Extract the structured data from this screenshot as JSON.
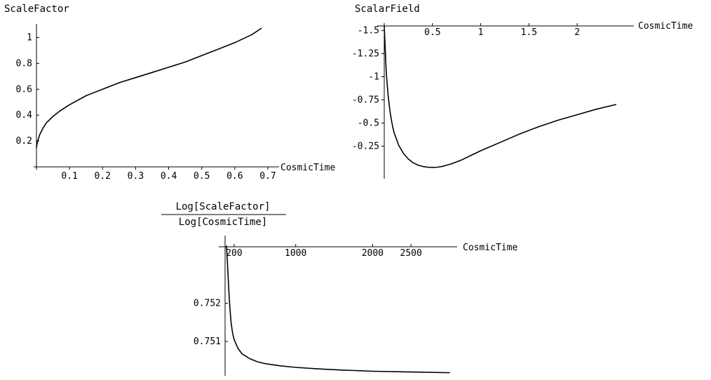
{
  "chart_data": [
    {
      "type": "line",
      "title": "ScaleFactor",
      "xlabel": "CosmicTime",
      "ylabel": "",
      "xlim": [
        0,
        0.7
      ],
      "ylim": [
        0,
        1.1
      ],
      "x_ticks": [
        0.1,
        0.2,
        0.3,
        0.4,
        0.5,
        0.6,
        0.7
      ],
      "x_tick_labels": [
        "0.1",
        "0.2",
        "0.3",
        "0.4",
        "0.5",
        "0.6",
        "0.7"
      ],
      "y_ticks": [
        0.2,
        0.4,
        0.6,
        0.8,
        1.0
      ],
      "y_tick_labels": [
        "0.2",
        "0.4",
        "0.6",
        "0.8",
        "1"
      ],
      "grid": false,
      "series": [
        {
          "x": [
            0.0,
            0.002,
            0.005,
            0.01,
            0.02,
            0.03,
            0.05,
            0.07,
            0.1,
            0.15,
            0.2,
            0.25,
            0.3,
            0.35,
            0.4,
            0.45,
            0.5,
            0.55,
            0.6,
            0.65,
            0.68
          ],
          "values": [
            0.15,
            0.18,
            0.21,
            0.25,
            0.3,
            0.34,
            0.39,
            0.43,
            0.48,
            0.55,
            0.6,
            0.65,
            0.69,
            0.73,
            0.77,
            0.81,
            0.86,
            0.91,
            0.96,
            1.02,
            1.07
          ]
        }
      ]
    },
    {
      "type": "line",
      "title": "ScalarField",
      "xlabel": "CosmicTime",
      "ylabel": "",
      "xlim": [
        0,
        2.5
      ],
      "ylim": [
        -1.55,
        0.05
      ],
      "x_ticks": [
        0.5,
        1,
        1.5,
        2
      ],
      "x_tick_labels": [
        "0.5",
        "1",
        "1.5",
        "2"
      ],
      "y_ticks": [
        -0.25,
        -0.5,
        -0.75,
        -1,
        -1.25,
        -1.5
      ],
      "y_tick_labels": [
        "-0.25",
        "-0.5",
        "-0.75",
        "-1",
        "-1.25",
        "-1.5"
      ],
      "grid": false,
      "series": [
        {
          "x": [
            0.0,
            0.01,
            0.02,
            0.04,
            0.06,
            0.08,
            0.1,
            0.15,
            0.2,
            0.25,
            0.3,
            0.35,
            0.4,
            0.45,
            0.5,
            0.55,
            0.6,
            0.7,
            0.8,
            0.9,
            1.0,
            1.2,
            1.4,
            1.6,
            1.8,
            2.0,
            2.2,
            2.4
          ],
          "values": [
            -1.55,
            -1.3,
            -1.05,
            -0.8,
            -0.62,
            -0.5,
            -0.4,
            -0.26,
            -0.17,
            -0.11,
            -0.07,
            -0.045,
            -0.03,
            -0.022,
            -0.02,
            -0.022,
            -0.03,
            -0.06,
            -0.1,
            -0.15,
            -0.2,
            -0.29,
            -0.38,
            -0.46,
            -0.53,
            -0.59,
            -0.65,
            -0.7
          ]
        }
      ]
    },
    {
      "type": "line",
      "title_numerator": "Log[ScaleFactor]",
      "title_denominator": "Log[CosmicTime]",
      "xlabel": "CosmicTime",
      "ylabel": "",
      "xlim": [
        0,
        3100
      ],
      "ylim": [
        0.7501,
        0.7537
      ],
      "x_ticks": [
        200,
        1000,
        2000,
        2500
      ],
      "x_tick_labels": [
        "200",
        "1000",
        "2000",
        "2500"
      ],
      "y_ticks": [
        0.751,
        0.752
      ],
      "y_tick_labels": [
        "0.751",
        "0.752"
      ],
      "grid": false,
      "series": [
        {
          "x": [
            100,
            110,
            120,
            130,
            140,
            160,
            180,
            200,
            250,
            300,
            400,
            500,
            600,
            800,
            1000,
            1300,
            1600,
            2000,
            2500,
            3000
          ],
          "values": [
            0.7535,
            0.75315,
            0.75275,
            0.75235,
            0.752,
            0.7515,
            0.75122,
            0.75105,
            0.75082,
            0.75068,
            0.75055,
            0.75047,
            0.75042,
            0.75036,
            0.75032,
            0.75028,
            0.75025,
            0.75022,
            0.7502,
            0.75018
          ]
        }
      ]
    }
  ]
}
